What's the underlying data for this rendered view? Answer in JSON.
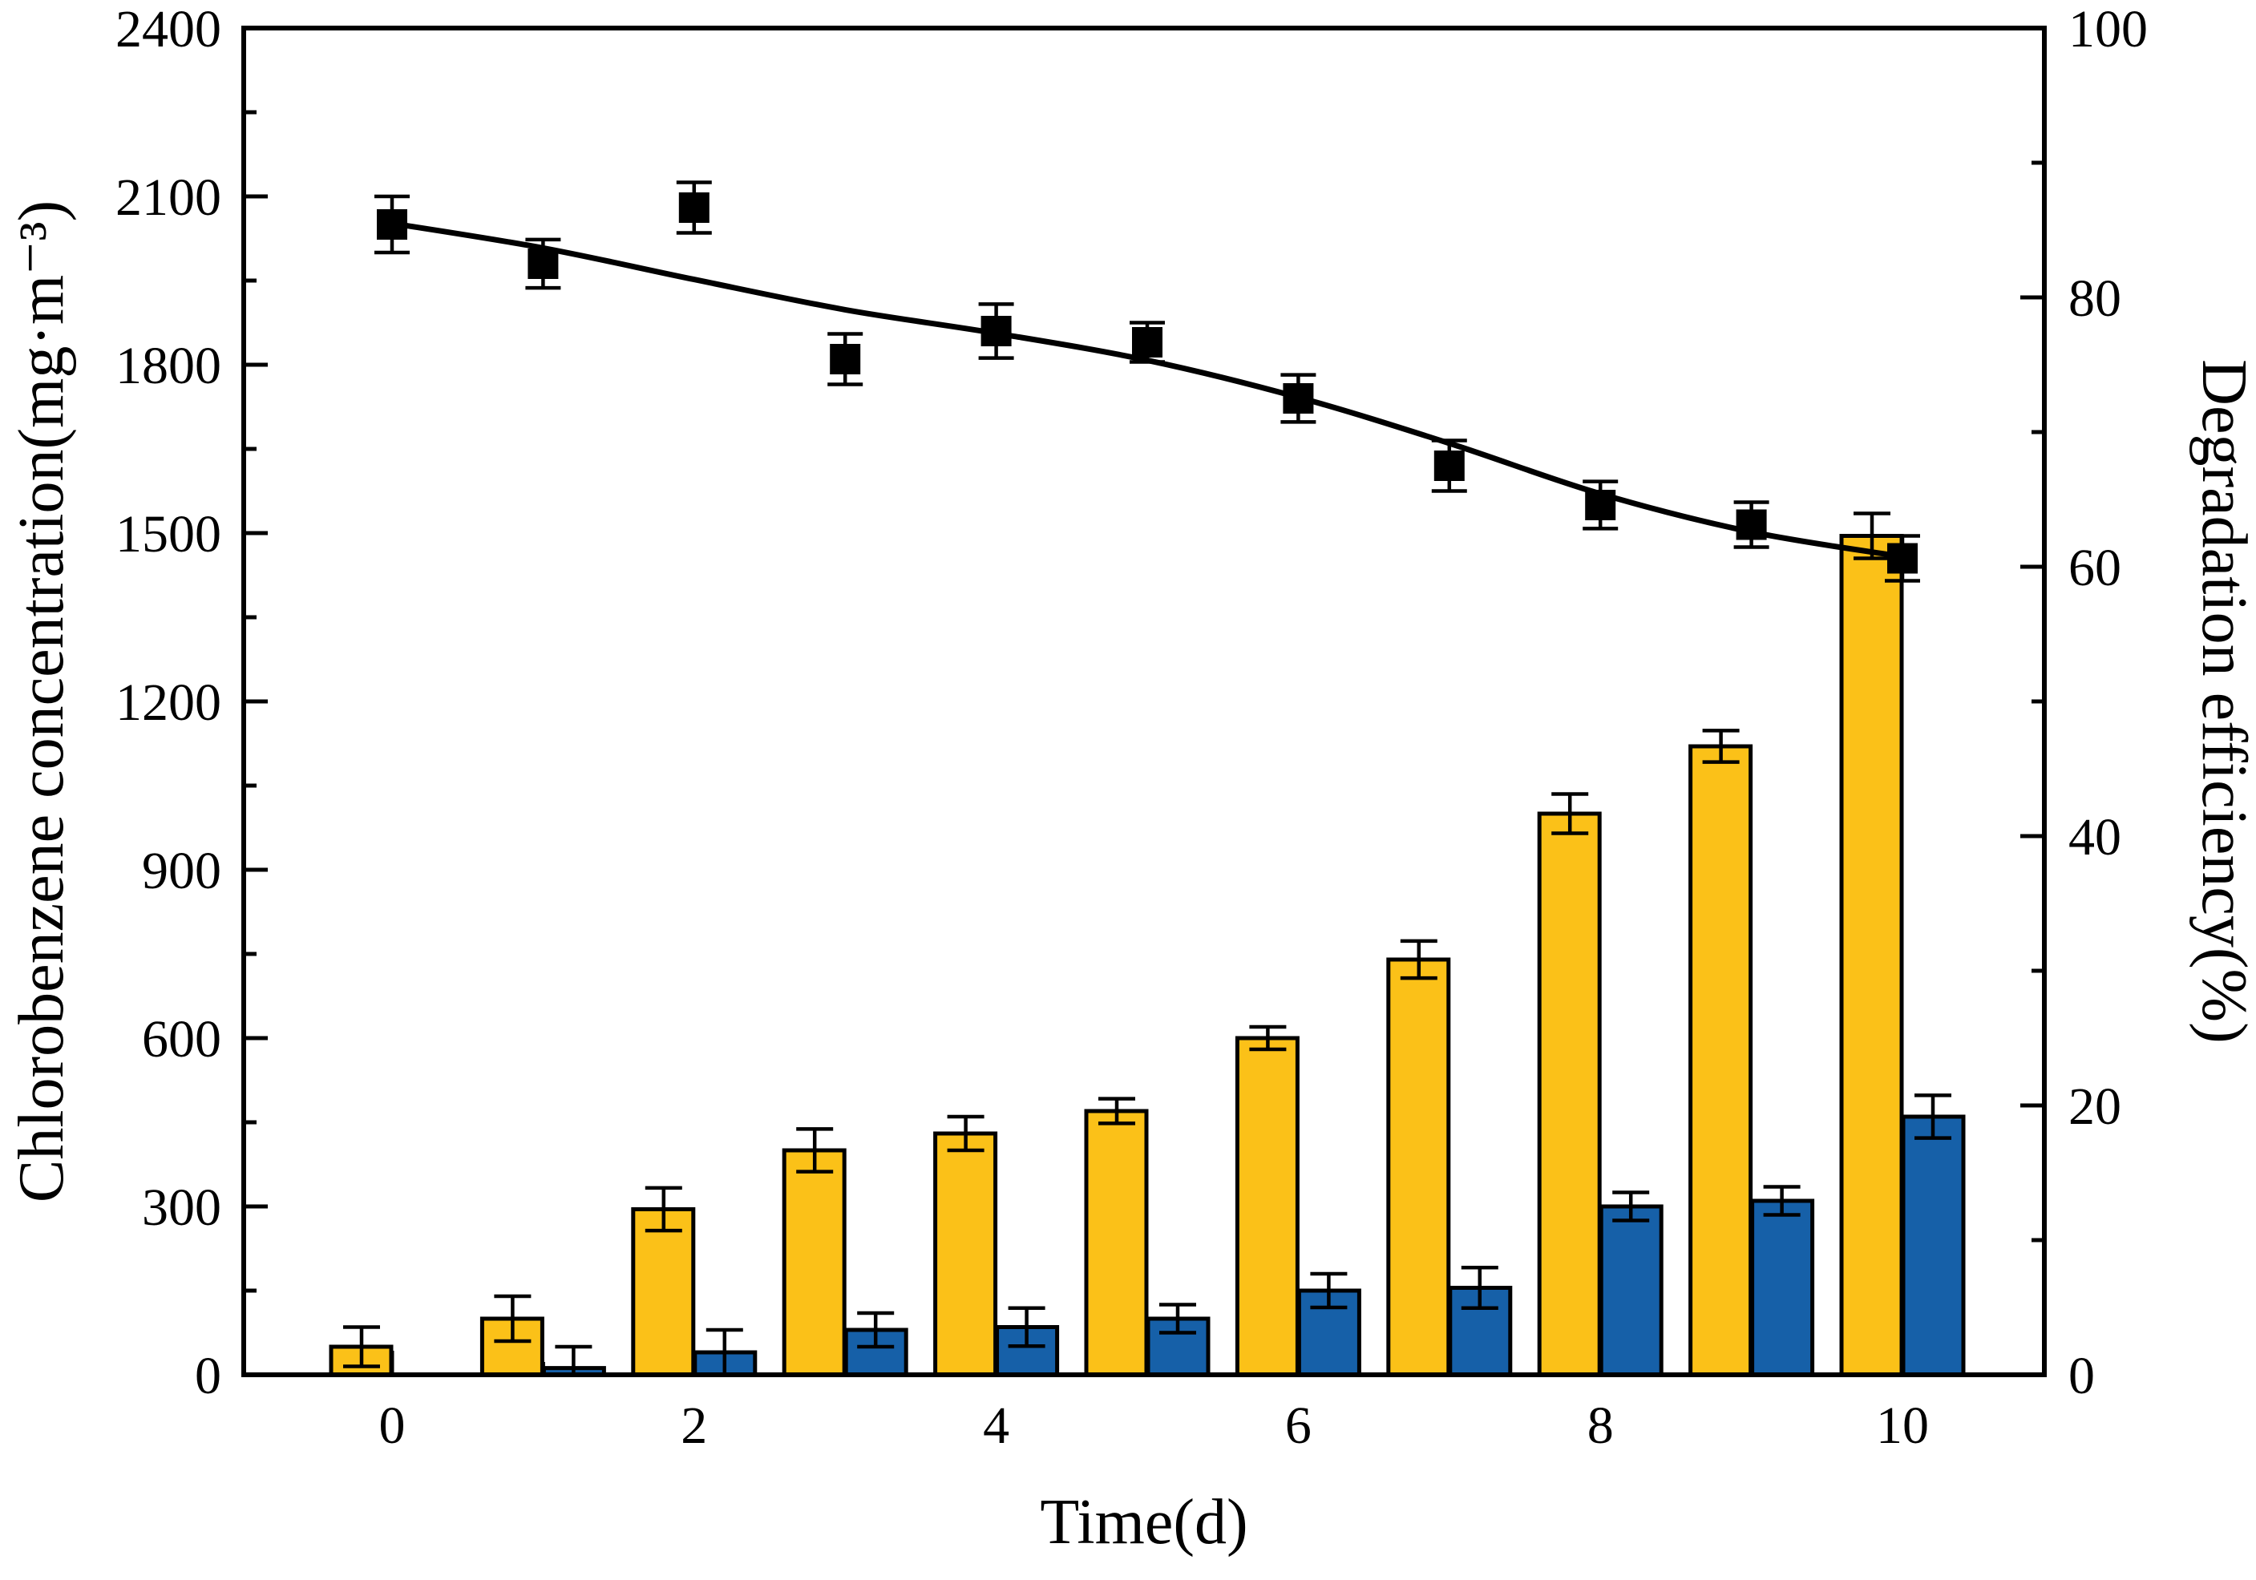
{
  "figure": {
    "background": "#ffffff",
    "frame_color": "#000000"
  },
  "chart_data": {
    "type": "bar",
    "subtype": "combo: grouped bars + scatter points with error bars and smooth fitted line",
    "x_days": [
      0,
      1,
      2,
      3,
      4,
      5,
      6,
      7,
      8,
      9,
      10
    ],
    "series": [
      {
        "name": "yellow bar series",
        "kind": "bar",
        "axis": "left",
        "color": "#FBC118",
        "outline": "#000000",
        "values": [
          50,
          100,
          295,
          400,
          430,
          470,
          600,
          740,
          1000,
          1120,
          1495
        ],
        "errors": [
          35,
          40,
          38,
          38,
          30,
          22,
          20,
          33,
          35,
          28,
          40
        ]
      },
      {
        "name": "blue bar series",
        "kind": "bar",
        "axis": "left",
        "color": "#1660A8",
        "outline": "#000000",
        "values": [
          0,
          12,
          40,
          80,
          85,
          100,
          150,
          155,
          300,
          310,
          460
        ],
        "errors": [
          0,
          38,
          40,
          30,
          34,
          25,
          30,
          36,
          25,
          25,
          38
        ]
      },
      {
        "name": "black square series",
        "kind": "scatter-square",
        "axis": "left",
        "color": "#000000",
        "values": [
          2050,
          1980,
          2080,
          1810,
          1860,
          1840,
          1740,
          1620,
          1550,
          1515,
          1455
        ],
        "errors": [
          50,
          43,
          45,
          45,
          48,
          35,
          42,
          45,
          42,
          40,
          40
        ],
        "right_axis_equivalent_pct": [
          85.4,
          82.5,
          86.7,
          75.4,
          77.5,
          76.7,
          72.5,
          67.5,
          64.6,
          63.1,
          60.6
        ]
      },
      {
        "name": "fitted curve through squares",
        "kind": "line",
        "axis": "left",
        "color": "#000000",
        "values": [
          2052,
          2008,
          1952,
          1898,
          1856,
          1808,
          1742,
          1660,
          1570,
          1502,
          1458
        ]
      }
    ],
    "axes": {
      "left": {
        "label": "Chlorobenzene concentration(mg·m⁻³)",
        "min": 0,
        "max": 2400,
        "major_step": 300,
        "minor_step": 150,
        "tick_labels": [
          "0",
          "300",
          "600",
          "900",
          "1200",
          "1500",
          "1800",
          "2100",
          "2400"
        ]
      },
      "right": {
        "label": "Degradation efficiency(%)",
        "min": 0,
        "max": 100,
        "major_step": 20,
        "minor_step": 10,
        "tick_labels": [
          "0",
          "20",
          "40",
          "60",
          "80",
          "100"
        ]
      },
      "bottom": {
        "label": "Time(d)",
        "min": 0,
        "max": 10,
        "major_ticks": [
          0,
          2,
          4,
          6,
          8,
          10
        ],
        "minor_ticks": [
          1,
          3,
          5,
          7,
          9
        ],
        "tick_labels": [
          "0",
          "2",
          "4",
          "6",
          "8",
          "10"
        ]
      },
      "grid": "off",
      "legend": "none"
    }
  }
}
